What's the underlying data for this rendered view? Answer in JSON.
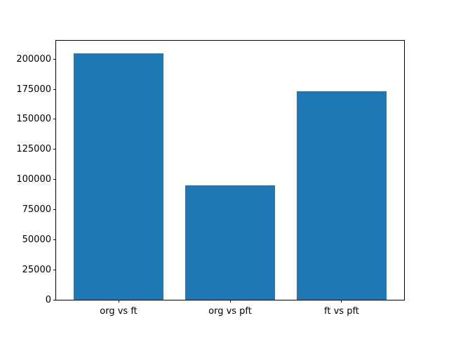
{
  "chart_data": {
    "type": "bar",
    "title": "",
    "xlabel": "",
    "ylabel": "",
    "categories": [
      "org vs ft",
      "org vs pft",
      "ft vs pft"
    ],
    "values": [
      205000,
      95000,
      173000
    ],
    "yticks": [
      0,
      25000,
      50000,
      75000,
      100000,
      125000,
      150000,
      175000,
      200000
    ],
    "ylim": [
      0,
      215250
    ],
    "grid": false,
    "legend_position": "none",
    "bar_color": "#1f77b4",
    "background_color": "#ffffff",
    "axis_color": "#000000"
  }
}
